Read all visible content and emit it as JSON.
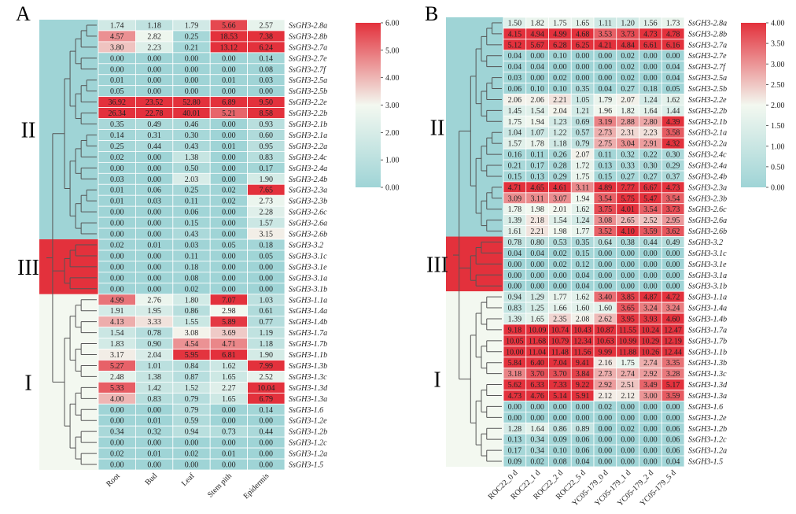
{
  "chart_data": [
    {
      "type": "heatmap",
      "panel_label": "A",
      "columns": [
        "Root",
        "Bud",
        "Leaf",
        "Stem pith",
        "Epidermis"
      ],
      "rows": [
        "SsGH3-2.8a",
        "SsGH3-2.8b",
        "SsGH3-2.7a",
        "SsGH3-2.7e",
        "SsGH3-2.7f",
        "SsGH3-2.5a",
        "SsGH3-2.5b",
        "SsGH3-2.2e",
        "SsGH3-2.2b",
        "SsGH3-2.1b",
        "SsGH3-2.1a",
        "SsGH3-2.2a",
        "SsGH3-2.4c",
        "SsGH3-2.4a",
        "SsGH3-2.4b",
        "SsGH3-2.3a",
        "SsGH3-2.3b",
        "SsGH3-2.6c",
        "SsGH3-2.6a",
        "SsGH3-2.6b",
        "SsGH3-3.2",
        "SsGH3-3.1c",
        "SsGH3-3.1e",
        "SsGH3-3.1a",
        "SsGH3-3.1b",
        "SsGH3-1.1a",
        "SsGH3-1.4a",
        "SsGH3-1.4b",
        "SsGH3-1.7a",
        "SsGH3-1.7b",
        "SsGH3-1.1b",
        "SsGH3-1.3b",
        "SsGH3-1.3c",
        "SsGH3-1.3d",
        "SsGH3-1.3a",
        "SsGH3-1.6",
        "SsGH3-1.2e",
        "SsGH3-1.2b",
        "SsGH3-1.2c",
        "SsGH3-1.2a",
        "SsGH3-1.5"
      ],
      "values": [
        [
          "1.74",
          "1.18",
          "1.79",
          "5.66",
          "2.57"
        ],
        [
          "4.57",
          "2.82",
          "0.25",
          "18.53",
          "7.38"
        ],
        [
          "3.80",
          "2.23",
          "0.21",
          "13.12",
          "6.24"
        ],
        [
          "0.00",
          "0.00",
          "0.00",
          "0.00",
          "0.14"
        ],
        [
          "0.00",
          "0.00",
          "0.00",
          "0.00",
          "0.08"
        ],
        [
          "0.01",
          "0.00",
          "0.00",
          "0.01",
          "0.03"
        ],
        [
          "0.05",
          "0.00",
          "0.00",
          "0.00",
          "0.00"
        ],
        [
          "36.92",
          "23.52",
          "52.80",
          "6.89",
          "9.50"
        ],
        [
          "26.34",
          "22.78",
          "40.01",
          "5.21",
          "8.58"
        ],
        [
          "0.35",
          "0.49",
          "0.46",
          "0.00",
          "0.93"
        ],
        [
          "0.14",
          "0.31",
          "0.30",
          "0.00",
          "0.60"
        ],
        [
          "0.25",
          "0.44",
          "0.43",
          "0.01",
          "0.95"
        ],
        [
          "0.02",
          "0.00",
          "1.38",
          "0.00",
          "0.83"
        ],
        [
          "0.00",
          "0.00",
          "0.50",
          "0.00",
          "0.17"
        ],
        [
          "0.03",
          "0.00",
          "2.03",
          "0.00",
          "1.90"
        ],
        [
          "0.01",
          "0.06",
          "0.25",
          "0.02",
          "7.65"
        ],
        [
          "0.01",
          "0.03",
          "0.11",
          "0.02",
          "2.73"
        ],
        [
          "0.00",
          "0.00",
          "0.06",
          "0.00",
          "2.28"
        ],
        [
          "0.00",
          "0.00",
          "0.15",
          "0.00",
          "1.57"
        ],
        [
          "0.00",
          "0.00",
          "0.43",
          "0.00",
          "3.15"
        ],
        [
          "0.02",
          "0.01",
          "0.03",
          "0.05",
          "0.18"
        ],
        [
          "0.00",
          "0.00",
          "0.11",
          "0.00",
          "0.05"
        ],
        [
          "0.00",
          "0.00",
          "0.18",
          "0.00",
          "0.00"
        ],
        [
          "0.00",
          "0.00",
          "0.08",
          "0.00",
          "0.00"
        ],
        [
          "0.00",
          "0.00",
          "0.02",
          "0.00",
          "0.00"
        ],
        [
          "4.99",
          "2.76",
          "1.80",
          "7.07",
          "1.03"
        ],
        [
          "1.91",
          "1.95",
          "0.86",
          "2.98",
          "0.61"
        ],
        [
          "4.13",
          "3.33",
          "1.55",
          "5.89",
          "0.77"
        ],
        [
          "1.54",
          "0.78",
          "3.08",
          "3.69",
          "1.19"
        ],
        [
          "1.83",
          "0.90",
          "4.54",
          "4.71",
          "1.18"
        ],
        [
          "3.17",
          "2.04",
          "5.95",
          "6.81",
          "1.90"
        ],
        [
          "5.27",
          "1.01",
          "0.84",
          "1.62",
          "7.99"
        ],
        [
          "2.48",
          "1.38",
          "0.87",
          "1.65",
          "2.52"
        ],
        [
          "5.33",
          "1.42",
          "1.52",
          "2.27",
          "10.04"
        ],
        [
          "4.00",
          "0.83",
          "0.79",
          "1.65",
          "6.79"
        ],
        [
          "0.00",
          "0.00",
          "0.79",
          "0.00",
          "0.14"
        ],
        [
          "0.00",
          "0.01",
          "0.59",
          "0.00",
          "0.00"
        ],
        [
          "0.34",
          "0.32",
          "0.94",
          "0.73",
          "0.44"
        ],
        [
          "0.00",
          "0.00",
          "0.00",
          "0.00",
          "0.00"
        ],
        [
          "0.02",
          "0.01",
          "0.02",
          "0.01",
          "0.00"
        ],
        [
          "0.00",
          "0.00",
          "0.00",
          "0.00",
          "0.00"
        ]
      ],
      "clusters": [
        {
          "label": "II",
          "start": 0,
          "end": 19,
          "color": "#9fd4d6"
        },
        {
          "label": "III",
          "start": 20,
          "end": 24,
          "color": "#e3313c"
        },
        {
          "label": "I",
          "start": 25,
          "end": 40,
          "color": "#f3f8f0"
        }
      ],
      "colorbar": {
        "min": 0,
        "max": 6,
        "ticks": [
          "0.00",
          "1.00",
          "2.00",
          "3.00",
          "4.00",
          "5.00",
          "6.00"
        ]
      }
    },
    {
      "type": "heatmap",
      "panel_label": "B",
      "columns": [
        "ROC22_0 d",
        "ROC22_1 d",
        "ROC22_2 d",
        "ROC22_5 d",
        "YC05-179_0 d",
        "YC05-179_1 d",
        "YC05-179_2 d",
        "YC05-179_5 d"
      ],
      "rows": [
        "SsGH3-2.8a",
        "SsGH3-2.8b",
        "SsGH3-2.7a",
        "SsGH3-2.7e",
        "SsGH3-2.7f",
        "SsGH3-2.5a",
        "SsGH3-2.5b",
        "SsGH3-2.2e",
        "SsGH3-2.2b",
        "SsGH3-2.1b",
        "SsGH3-2.1a",
        "SsGH3-2.2a",
        "SsGH3-2.4c",
        "SsGH3-2.4a",
        "SsGH3-2.4b",
        "SsGH3-2.3a",
        "SsGH3-2.3b",
        "SsGH3-2.6c",
        "SsGH3-2.6a",
        "SsGH3-2.6b",
        "SsGH3-3.2",
        "SsGH3-3.1c",
        "SsGH3-3.1e",
        "SsGH3-3.1a",
        "SsGH3-3.1b",
        "SsGH3-1.1a",
        "SsGH3-1.4a",
        "SsGH3-1.4b",
        "SsGH3-1.7a",
        "SsGH3-1.7b",
        "SsGH3-1.1b",
        "SsGH3-1.3b",
        "SsGH3-1.3c",
        "SsGH3-1.3d",
        "SsGH3-1.3a",
        "SsGH3-1.6",
        "SsGH3-1.2e",
        "SsGH3-1.2b",
        "SsGH3-1.2c",
        "SsGH3-1.2a",
        "SsGH3-1.5"
      ],
      "values": [
        [
          "1.50",
          "1.82",
          "1.75",
          "1.65",
          "1.11",
          "1.20",
          "1.56",
          "1.73"
        ],
        [
          "4.15",
          "4.94",
          "4.99",
          "4.68",
          "3.53",
          "3.73",
          "4.73",
          "4.78"
        ],
        [
          "5.12",
          "5.67",
          "6.28",
          "6.25",
          "4.21",
          "4.84",
          "6.61",
          "6.16"
        ],
        [
          "0.04",
          "0.00",
          "0.10",
          "0.00",
          "0.00",
          "0.02",
          "0.00",
          "0.00"
        ],
        [
          "0.04",
          "0.04",
          "0.00",
          "0.00",
          "0.00",
          "0.02",
          "0.00",
          "0.04"
        ],
        [
          "0.03",
          "0.00",
          "0.02",
          "0.00",
          "0.00",
          "0.02",
          "0.00",
          "0.04"
        ],
        [
          "0.06",
          "0.10",
          "0.10",
          "0.35",
          "0.04",
          "0.27",
          "0.18",
          "0.05"
        ],
        [
          "2.06",
          "2.06",
          "2.21",
          "1.05",
          "1.79",
          "2.07",
          "1.24",
          "1.62"
        ],
        [
          "1.45",
          "1.54",
          "2.04",
          "1.21",
          "1.96",
          "1.82",
          "1.64",
          "1.44"
        ],
        [
          "1.75",
          "1.94",
          "1.23",
          "0.69",
          "3.19",
          "2.88",
          "2.80",
          "4.39"
        ],
        [
          "1.04",
          "1.07",
          "1.22",
          "0.57",
          "2.73",
          "2.31",
          "2.23",
          "3.58"
        ],
        [
          "1.57",
          "1.78",
          "1.18",
          "0.79",
          "2.75",
          "3.04",
          "2.91",
          "4.32"
        ],
        [
          "0.16",
          "0.11",
          "0.26",
          "2.07",
          "0.11",
          "0.32",
          "0.22",
          "0.30"
        ],
        [
          "0.21",
          "0.17",
          "0.28",
          "1.72",
          "0.13",
          "0.33",
          "0.30",
          "0.29"
        ],
        [
          "0.15",
          "0.13",
          "0.29",
          "1.75",
          "0.15",
          "0.27",
          "0.27",
          "0.37"
        ],
        [
          "4.71",
          "4.65",
          "4.61",
          "3.11",
          "4.89",
          "7.77",
          "6.67",
          "4.73"
        ],
        [
          "3.09",
          "3.11",
          "3.07",
          "1.94",
          "3.54",
          "5.75",
          "5.47",
          "3.54"
        ],
        [
          "1.78",
          "1.98",
          "2.01",
          "1.62",
          "3.75",
          "4.01",
          "3.54",
          "3.73"
        ],
        [
          "1.39",
          "2.18",
          "1.54",
          "1.24",
          "3.08",
          "2.65",
          "2.52",
          "2.95"
        ],
        [
          "1.61",
          "2.21",
          "1.98",
          "1.77",
          "3.52",
          "4.10",
          "3.59",
          "3.62"
        ],
        [
          "0.78",
          "0.80",
          "0.53",
          "0.35",
          "0.64",
          "0.38",
          "0.44",
          "0.49"
        ],
        [
          "0.04",
          "0.04",
          "0.02",
          "0.15",
          "0.00",
          "0.00",
          "0.00",
          "0.00"
        ],
        [
          "0.00",
          "0.00",
          "0.02",
          "0.12",
          "0.00",
          "0.00",
          "0.00",
          "0.00"
        ],
        [
          "0.00",
          "0.00",
          "0.00",
          "0.04",
          "0.00",
          "0.00",
          "0.00",
          "0.00"
        ],
        [
          "0.00",
          "0.00",
          "0.00",
          "0.04",
          "0.00",
          "0.00",
          "0.00",
          "0.00"
        ],
        [
          "0.94",
          "1.29",
          "1.77",
          "1.62",
          "3.40",
          "3.85",
          "4.87",
          "4.72"
        ],
        [
          "0.83",
          "1.25",
          "1.66",
          "1.60",
          "1.60",
          "3.65",
          "3.24",
          "3.24"
        ],
        [
          "1.39",
          "1.65",
          "2.35",
          "2.08",
          "2.62",
          "3.95",
          "3.93",
          "4.60"
        ],
        [
          "9.18",
          "10.09",
          "10.74",
          "10.43",
          "10.87",
          "11.55",
          "10.24",
          "12.47"
        ],
        [
          "10.05",
          "11.68",
          "10.79",
          "12.34",
          "10.63",
          "10.99",
          "10.29",
          "12.19"
        ],
        [
          "10.00",
          "11.04",
          "11.48",
          "11.56",
          "9.99",
          "11.88",
          "10.26",
          "12.44"
        ],
        [
          "5.84",
          "6.40",
          "7.04",
          "9.41",
          "2.16",
          "1.75",
          "2.74",
          "3.35"
        ],
        [
          "3.18",
          "3.70",
          "3.70",
          "3.84",
          "2.73",
          "2.74",
          "2.92",
          "3.28"
        ],
        [
          "5.62",
          "6.33",
          "7.33",
          "9.22",
          "2.92",
          "2.51",
          "3.49",
          "5.17"
        ],
        [
          "4.73",
          "4.76",
          "5.14",
          "5.91",
          "2.12",
          "2.12",
          "3.00",
          "3.59"
        ],
        [
          "0.00",
          "0.00",
          "0.00",
          "0.00",
          "0.02",
          "0.00",
          "0.00",
          "0.00"
        ],
        [
          "0.00",
          "0.00",
          "0.00",
          "0.00",
          "0.00",
          "0.00",
          "0.00",
          "0.00"
        ],
        [
          "1.28",
          "1.64",
          "0.86",
          "0.89",
          "0.00",
          "0.02",
          "0.00",
          "0.06"
        ],
        [
          "0.13",
          "0.34",
          "0.09",
          "0.06",
          "0.00",
          "0.00",
          "0.00",
          "0.06"
        ],
        [
          "0.17",
          "0.34",
          "0.10",
          "0.06",
          "0.00",
          "0.00",
          "0.00",
          "0.06"
        ],
        [
          "0.09",
          "0.02",
          "0.08",
          "0.04",
          "0.00",
          "0.00",
          "0.00",
          "0.04"
        ]
      ],
      "clusters": [
        {
          "label": "II",
          "start": 0,
          "end": 19,
          "color": "#9fd4d6"
        },
        {
          "label": "III",
          "start": 20,
          "end": 24,
          "color": "#e3313c"
        },
        {
          "label": "I",
          "start": 25,
          "end": 40,
          "color": "#f3f8f0"
        }
      ],
      "colorbar": {
        "min": 0,
        "max": 4,
        "ticks": [
          "0.00",
          "0.50",
          "1.00",
          "1.50",
          "2.00",
          "2.50",
          "3.00",
          "3.50",
          "4.00"
        ]
      }
    }
  ],
  "colors": {
    "low": "#9fd4d6",
    "mid": "#f3f8f0",
    "high": "#e3313c",
    "tree": "#555555"
  }
}
